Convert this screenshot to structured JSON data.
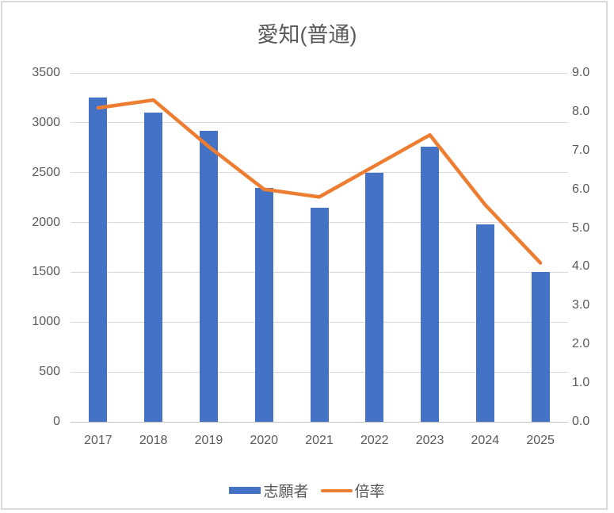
{
  "chart_data": {
    "type": "combo-bar-line",
    "title": "愛知(普通)",
    "categories": [
      "2017",
      "2018",
      "2019",
      "2020",
      "2021",
      "2022",
      "2023",
      "2024",
      "2025"
    ],
    "series": [
      {
        "name": "志願者",
        "type": "bar",
        "axis": "left",
        "color": "#4472C4",
        "values": [
          3250,
          3100,
          2920,
          2350,
          2150,
          2500,
          2760,
          1980,
          1500
        ]
      },
      {
        "name": "倍率",
        "type": "line",
        "axis": "right",
        "color": "#ED7D31",
        "values": [
          8.1,
          8.3,
          7.1,
          6.0,
          5.8,
          6.6,
          7.4,
          5.6,
          4.1
        ]
      }
    ],
    "left_axis": {
      "min": 0,
      "max": 3500,
      "step": 500,
      "ticks": [
        "3500",
        "3000",
        "2500",
        "2000",
        "1500",
        "1000",
        "500",
        "0"
      ]
    },
    "right_axis": {
      "min": 0.0,
      "max": 9.0,
      "step": 1.0,
      "ticks": [
        "9.0",
        "8.0",
        "7.0",
        "6.0",
        "5.0",
        "4.0",
        "3.0",
        "2.0",
        "1.0",
        "0.0"
      ]
    },
    "grid": "horizontal",
    "legend_position": "bottom",
    "colors": {
      "bar": "#4472C4",
      "line": "#ED7D31",
      "gridline": "#D9D9D9",
      "axis_line": "#C6C6C6",
      "text": "#595959",
      "border": "#D9D9D9",
      "background": "#FFFFFF"
    }
  }
}
